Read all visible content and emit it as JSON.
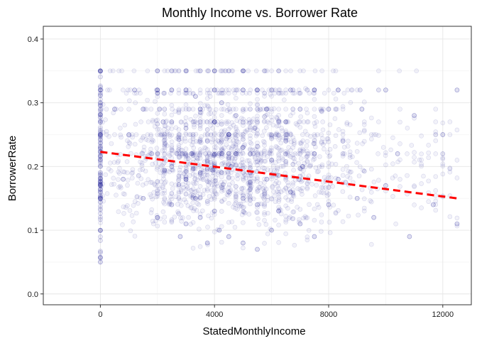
{
  "chart_data": {
    "type": "scatter",
    "title": "Monthly Income vs. Borrower Rate",
    "xlabel": "StatedMonthlyIncome",
    "ylabel": "BorrowerRate",
    "xlim": [
      -2000,
      13000
    ],
    "ylim": [
      -0.017,
      0.42
    ],
    "x_ticks": [
      0,
      4000,
      8000,
      12000
    ],
    "x_tick_labels": [
      "0",
      "4000",
      "8000",
      "12000"
    ],
    "y_ticks": [
      0.0,
      0.1,
      0.2,
      0.3,
      0.4
    ],
    "y_tick_labels": [
      "0.0",
      "0.1",
      "0.2",
      "0.3",
      "0.4"
    ],
    "grid": true,
    "point_color": "#00008B",
    "point_alpha": 0.05,
    "trend_line": {
      "style": "dashed",
      "color": "#FF0000",
      "x": [
        0,
        12500
      ],
      "y": [
        0.223,
        0.15
      ]
    },
    "series": [
      {
        "x": [
          0,
          0,
          0,
          0,
          0,
          0,
          0,
          0,
          500,
          800,
          1000,
          1200,
          1500,
          1500,
          1800,
          2000,
          2000,
          2000,
          2200,
          2500,
          2500,
          2500,
          2500,
          2800,
          3000,
          3000,
          3000,
          3000,
          3000,
          3200,
          3333,
          3333,
          3500,
          3500,
          3500,
          3500,
          3750,
          3750,
          4000,
          4000,
          4000,
          4000,
          4000,
          4166,
          4166,
          4250,
          4500,
          4500,
          4500,
          4500,
          4583,
          4750,
          5000,
          5000,
          5000,
          5000,
          5000,
          5250,
          5416,
          5500,
          5500,
          5500,
          5833,
          5833,
          6000,
          6000,
          6000,
          6250,
          6250,
          6500,
          6666,
          6666,
          7000,
          7000,
          7083,
          7500,
          7500,
          7500,
          8000,
          8000,
          8333,
          8333,
          8500,
          9000,
          9166,
          9583,
          10000,
          10000,
          10416,
          10833,
          11000,
          11666,
          12000,
          12500,
          12500
        ],
        "y": [
          0.35,
          0.32,
          0.3,
          0.25,
          0.2,
          0.15,
          0.1,
          0.05,
          0.29,
          0.18,
          0.25,
          0.32,
          0.15,
          0.29,
          0.22,
          0.35,
          0.32,
          0.12,
          0.27,
          0.35,
          0.32,
          0.2,
          0.14,
          0.09,
          0.35,
          0.32,
          0.26,
          0.18,
          0.11,
          0.22,
          0.31,
          0.15,
          0.35,
          0.29,
          0.19,
          0.12,
          0.24,
          0.08,
          0.35,
          0.32,
          0.27,
          0.2,
          0.13,
          0.22,
          0.1,
          0.3,
          0.35,
          0.25,
          0.16,
          0.09,
          0.2,
          0.28,
          0.35,
          0.32,
          0.23,
          0.15,
          0.08,
          0.19,
          0.26,
          0.32,
          0.14,
          0.07,
          0.29,
          0.18,
          0.32,
          0.21,
          0.1,
          0.27,
          0.13,
          0.24,
          0.32,
          0.16,
          0.29,
          0.11,
          0.2,
          0.32,
          0.22,
          0.09,
          0.29,
          0.14,
          0.32,
          0.18,
          0.24,
          0.15,
          0.29,
          0.12,
          0.32,
          0.17,
          0.22,
          0.09,
          0.28,
          0.14,
          0.25,
          0.32,
          0.11
        ]
      }
    ]
  }
}
